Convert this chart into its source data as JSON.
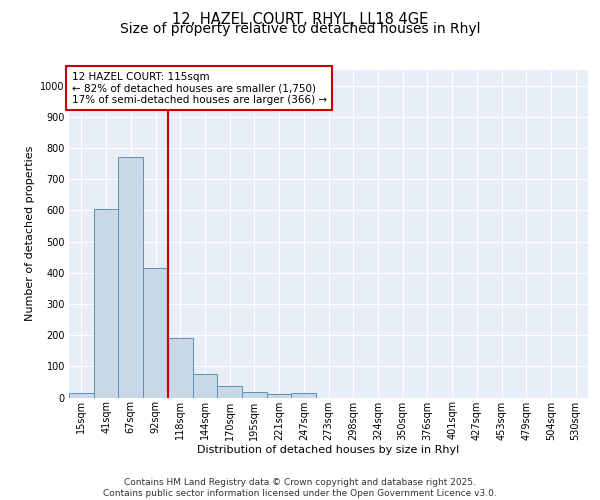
{
  "title_line1": "12, HAZEL COURT, RHYL, LL18 4GE",
  "title_line2": "Size of property relative to detached houses in Rhyl",
  "xlabel": "Distribution of detached houses by size in Rhyl",
  "ylabel": "Number of detached properties",
  "categories": [
    "15sqm",
    "41sqm",
    "67sqm",
    "92sqm",
    "118sqm",
    "144sqm",
    "170sqm",
    "195sqm",
    "221sqm",
    "247sqm",
    "273sqm",
    "298sqm",
    "324sqm",
    "350sqm",
    "376sqm",
    "401sqm",
    "427sqm",
    "453sqm",
    "479sqm",
    "504sqm",
    "530sqm"
  ],
  "values": [
    15,
    605,
    770,
    415,
    190,
    75,
    37,
    17,
    12,
    15,
    0,
    0,
    0,
    0,
    0,
    0,
    0,
    0,
    0,
    0,
    0
  ],
  "bar_color": "#c8d8e8",
  "bar_edge_color": "#6090b0",
  "reference_line_x": 3.5,
  "reference_line_color": "#cc0000",
  "annotation_line1": "12 HAZEL COURT: 115sqm",
  "annotation_line2": "← 82% of detached houses are smaller (1,750)",
  "annotation_line3": "17% of semi-detached houses are larger (366) →",
  "annotation_box_color": "#cc0000",
  "ylim": [
    0,
    1050
  ],
  "yticks": [
    0,
    100,
    200,
    300,
    400,
    500,
    600,
    700,
    800,
    900,
    1000
  ],
  "footer_line1": "Contains HM Land Registry data © Crown copyright and database right 2025.",
  "footer_line2": "Contains public sector information licensed under the Open Government Licence v3.0.",
  "bg_color": "#e8eef6",
  "grid_color": "#ffffff",
  "title_fontsize": 10.5,
  "axis_label_fontsize": 8,
  "tick_fontsize": 7,
  "annotation_fontsize": 7.5,
  "footer_fontsize": 6.5
}
